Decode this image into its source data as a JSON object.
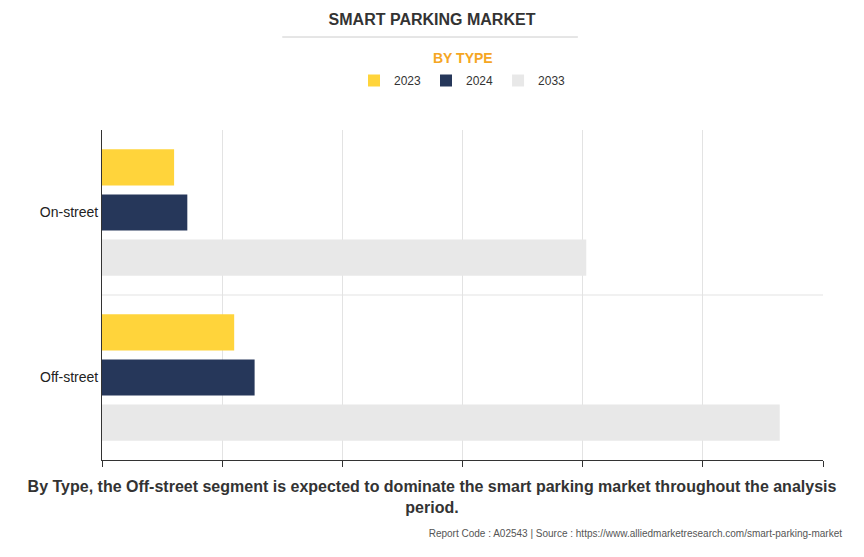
{
  "chart_data": {
    "type": "bar",
    "title": "SMART PARKING MARKET",
    "subtitle": "BY TYPE",
    "annotations": [
      "By Type, the Off-street segment is expected to dominate the smart parking market throughout the analysis period.",
      "Report Code : A02543  |  Source : https://www.alliedmarketresearch.com/smart-parking-market"
    ],
    "orientation": "horizontal",
    "categories": [
      "On-street",
      "Off-street"
    ],
    "series": [
      {
        "name": "2023",
        "color": "#ffd43b",
        "values": [
          0.6,
          1.1
        ]
      },
      {
        "name": "2024",
        "color": "#26375a",
        "values": [
          0.71,
          1.27
        ]
      },
      {
        "name": "2033",
        "color": "#e8e8e8",
        "values": [
          4.03,
          5.64
        ]
      }
    ],
    "xlim": [
      0,
      6
    ],
    "xticks": [
      0,
      1,
      2,
      3,
      4,
      5,
      6
    ],
    "grid": true,
    "tick_labels": "y",
    "legend": "top"
  }
}
